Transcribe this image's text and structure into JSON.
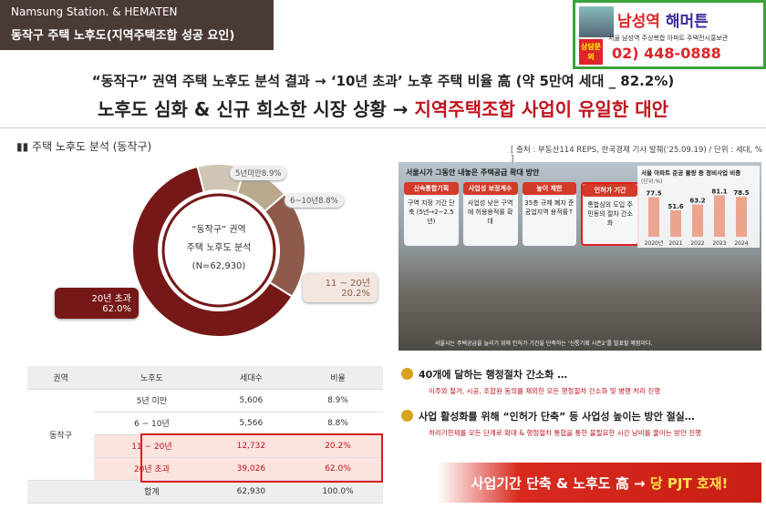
{
  "header": {
    "brand": "Namsung Station. & HEMATEN",
    "title": "동작구 주택 노후도(지역주택조합 성공 요인)"
  },
  "logo": {
    "name_a": "남성역",
    "name_b": "해머튼",
    "badge": "상담문의",
    "phone_prefix": "02)",
    "phone": "448-0888",
    "caption": "서울 남성역 주상복합 아파트 주택전시홍보관"
  },
  "headline": {
    "line1": "“동작구” 권역 주택 노후도 분석 결과 → ‘10년 초과’ 노후 주택 비율 高 (약 5만여 세대 _ 82.2%)",
    "line2_a": "노후도 심화 & 신규 희소한 시장 상황 → ",
    "line2_b": "지역주택조합 사업이 유일한 대안"
  },
  "section": {
    "title": "주택 노후도 분석 (동작구)",
    "source": "[ 출처 : 부동산114 REPS, 한국경제 기사 발췌(‘25.09.19) / 단위 : 세대, % ]"
  },
  "chart_data": [
    {
      "type": "pie",
      "donut": true,
      "center_text": [
        "“동작구” 권역",
        "주택 노후도 분석",
        "(N=62,930)"
      ],
      "categories": [
        "5년미만",
        "6~10년",
        "11 ~ 20년",
        "20년 초과"
      ],
      "values": [
        8.9,
        8.8,
        20.2,
        62.0
      ],
      "value_labels": [
        "8.9%",
        "8.8%",
        "20.2%",
        "62.0%"
      ],
      "colors": [
        "#cfc5b4",
        "#b9a98f",
        "#8e5b4b",
        "#761818"
      ]
    },
    {
      "type": "bar",
      "title": "서울 아파트 준공 물량 중 정비사업 비중",
      "subtitle": "(단위:%)",
      "categories": [
        "2020년",
        "2021",
        "2022",
        "2023",
        "2024"
      ],
      "values": [
        77.5,
        51.6,
        63.2,
        81.1,
        78.5
      ],
      "ylim": [
        0,
        100
      ],
      "color": "#e8643c"
    }
  ],
  "photo": {
    "title": "서울시가 그동안 내놓은 주택공급 확대 방안",
    "boxes": [
      {
        "head": "신속통합기획",
        "body": "구역 지정 기간 단축 (5년→2~2.5년)"
      },
      {
        "head": "사업성 보정계수",
        "body": "사업성 낮은 구역에 허용용적률 확대"
      },
      {
        "head": "높이 제한",
        "body": "35층 규제 폐지 준공업지역 용적률↑"
      },
      {
        "head": "인허가 기간",
        "body": "통합심의 도입 주민동의 절차 간소화"
      }
    ],
    "caption": "서울시는 주택공급을 늘리기 위해 인허가 기간을 단축하는 ‘신통기획 시즌2’를 발표할 예정이다."
  },
  "table": {
    "header": [
      "권역",
      "노후도",
      "세대수",
      "비율"
    ],
    "region": "동작구",
    "rows": [
      [
        "5년 미만",
        "5,606",
        "8.9%"
      ],
      [
        "6 ~ 10년",
        "5,566",
        "8.8%"
      ],
      [
        "11 ~ 20년",
        "12,732",
        "20.2%"
      ],
      [
        "20년 초과",
        "39,026",
        "62.0%"
      ],
      [
        "합계",
        "62,930",
        "100.0%"
      ]
    ]
  },
  "points": [
    {
      "title": "40개에 달하는 행정절차 간소화 …",
      "body": "이주와 철거, 시공, 조합원 동의를 제외한 모든 행정절차 간소화 및 병행 처리 진행"
    },
    {
      "title": "사업 활성화를 위해 “인허가 단축” 등 사업성 높이는 방안 절실…",
      "body": "처리기한제를 모든 단계로 확대 & 행정절차 통합을 통한 불필요한 시간 낭비를 줄이는 방안 진행"
    }
  ],
  "banner": {
    "a": "사업기간 단축 & 노후도 高 → ",
    "b": "당 PJT 호재!"
  }
}
